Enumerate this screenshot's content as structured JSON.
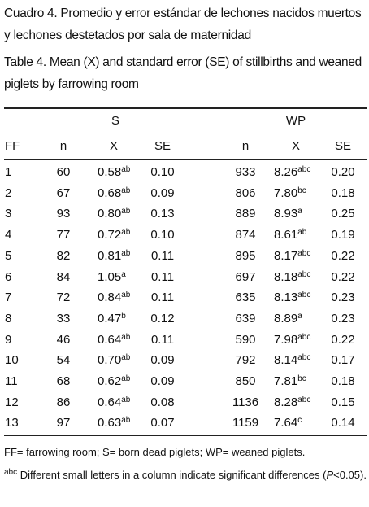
{
  "caption_es": "Cuadro 4. Promedio y error estándar de lechones nacidos muertos y lechones destetados por sala de maternidad",
  "caption_en": "Table 4. Mean (X) and standard error (SE) of stillbirths and weaned piglets by farrowing room",
  "table": {
    "groups": [
      "S",
      "WP"
    ],
    "row_header": "FF",
    "columns": [
      "n",
      "X",
      "SE",
      "n",
      "X",
      "SE"
    ],
    "rows": [
      [
        "1",
        "60",
        "0.58",
        "ab",
        "0.10",
        "933",
        "8.26",
        "abc",
        "0.20"
      ],
      [
        "2",
        "67",
        "0.68",
        "ab",
        "0.09",
        "806",
        "7.80",
        "bc",
        "0.18"
      ],
      [
        "3",
        "93",
        "0.80",
        "ab",
        "0.13",
        "889",
        "8.93",
        "a",
        "0.25"
      ],
      [
        "4",
        "77",
        "0.72",
        "ab",
        "0.10",
        "874",
        "8.61",
        "ab",
        "0.19"
      ],
      [
        "5",
        "82",
        "0.81",
        "ab",
        "0.11",
        "895",
        "8.17",
        "abc",
        "0.22"
      ],
      [
        "6",
        "84",
        "1.05",
        "a",
        "0.11",
        "697",
        "8.18",
        "abc",
        "0.22"
      ],
      [
        "7",
        "72",
        "0.84",
        "ab",
        "0.11",
        "635",
        "8.13",
        "abc",
        "0.23"
      ],
      [
        "8",
        "33",
        "0.47",
        "b",
        "0.12",
        "639",
        "8.89",
        "a",
        "0.23"
      ],
      [
        "9",
        "46",
        "0.64",
        "ab",
        "0.11",
        "590",
        "7.98",
        "abc",
        "0.22"
      ],
      [
        "10",
        "54",
        "0.70",
        "ab",
        "0.09",
        "792",
        "8.14",
        "abc",
        "0.17"
      ],
      [
        "11",
        "68",
        "0.62",
        "ab",
        "0.09",
        "850",
        "7.81",
        "bc",
        "0.18"
      ],
      [
        "12",
        "86",
        "0.64",
        "ab",
        "0.08",
        "1136",
        "8.28",
        "abc",
        "0.15"
      ],
      [
        "13",
        "97",
        "0.63",
        "ab",
        "0.07",
        "1159",
        "7.64",
        "c",
        "0.14"
      ]
    ]
  },
  "footnotes": {
    "abbreviations": "FF= farrowing room; S= born dead piglets; WP= weaned piglets.",
    "significance": {
      "sup": "abc",
      "text": "Different small letters in a column indicate significant differences (",
      "p": "P",
      "end": "<0.05)."
    }
  }
}
